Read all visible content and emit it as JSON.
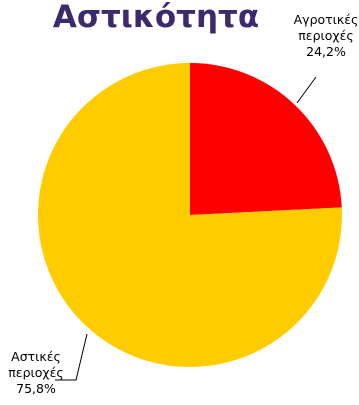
{
  "chart_data": {
    "type": "pie",
    "title": "Αστικότητα",
    "slices": [
      {
        "label_lines": [
          "Αγροτικές",
          "περιοχές"
        ],
        "value_label": "24,2%",
        "value": 24.2,
        "color": "#ff0000"
      },
      {
        "label_lines": [
          "Αστικές",
          "περιοχές"
        ],
        "value_label": "75,8%",
        "value": 75.8,
        "color": "#ffcc00"
      }
    ],
    "start_angle": "12 o'clock",
    "direction": "clockwise",
    "legend": "none"
  }
}
